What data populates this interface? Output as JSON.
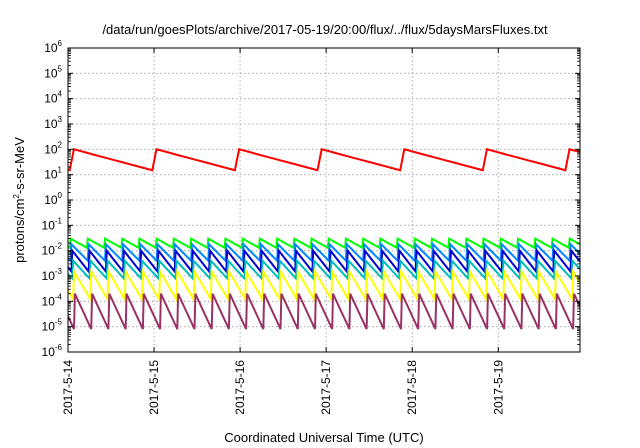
{
  "chart_data": {
    "type": "line",
    "title": "/data/run/goesPlots/archive/2017-05-19/20:00/flux/../flux/5daysMarsFluxes.txt",
    "xlabel": "Coordinated Universal Time (UTC)",
    "ylabel": {
      "pre": "protons/cm",
      "sup": "2",
      "post": "-s-sr-MeV"
    },
    "yscale": "log",
    "ylim": [
      1e-06,
      1000000.0
    ],
    "xlim": [
      0,
      5.95
    ],
    "x_unit": "days since 2017-5-14",
    "xticks": [
      {
        "x": 0,
        "label": "2017-5-14"
      },
      {
        "x": 1,
        "label": "2017-5-15"
      },
      {
        "x": 2,
        "label": "2017-5-16"
      },
      {
        "x": 3,
        "label": "2017-5-17"
      },
      {
        "x": 4,
        "label": "2017-5-18"
      },
      {
        "x": 5,
        "label": "2017-5-19"
      }
    ],
    "yticks": [
      {
        "exp": -6,
        "label": "10",
        "sup": "-6"
      },
      {
        "exp": -5,
        "label": "10",
        "sup": "-5"
      },
      {
        "exp": -4,
        "label": "10",
        "sup": "-4"
      },
      {
        "exp": -3,
        "label": "10",
        "sup": "-3"
      },
      {
        "exp": -2,
        "label": "10",
        "sup": "-2"
      },
      {
        "exp": -1,
        "label": "10",
        "sup": "-1"
      },
      {
        "exp": 0,
        "label": "10",
        "sup": "0"
      },
      {
        "exp": 1,
        "label": "10",
        "sup": "1"
      },
      {
        "exp": 2,
        "label": "10",
        "sup": "2"
      },
      {
        "exp": 3,
        "label": "10",
        "sup": "3"
      },
      {
        "exp": 4,
        "label": "10",
        "sup": "4"
      },
      {
        "exp": 5,
        "label": "10",
        "sup": "5"
      },
      {
        "exp": 6,
        "label": "10",
        "sup": "6"
      }
    ],
    "grid": true,
    "grid_style": "dotted",
    "series": [
      {
        "color": "#ff0000",
        "period": 0.96,
        "phase": 0.02,
        "segments": 8,
        "top": 100,
        "bottom": 15,
        "tail_shift": 0
      },
      {
        "color": "#00ff00",
        "period": 0.2,
        "phase": 0.02,
        "segments": 2,
        "top": 0.03,
        "bottom": 0.013,
        "tail_shift": 0
      },
      {
        "color": "#0088ff",
        "period": 0.2,
        "phase": 0.03,
        "segments": 2,
        "top": 0.018,
        "bottom": 0.004,
        "tail_shift": 0
      },
      {
        "color": "#0000cc",
        "period": 0.2,
        "phase": 0.04,
        "segments": 2,
        "top": 0.01,
        "bottom": 0.0015,
        "tail_shift": 0
      },
      {
        "color": "#00bbbb",
        "period": 0.2,
        "phase": 0.05,
        "segments": 2,
        "top": 0.004,
        "bottom": 0.0008,
        "tail_shift": 0
      },
      {
        "color": "#ffff00",
        "period": 0.2,
        "phase": 0.06,
        "segments": 2,
        "top": 0.0015,
        "bottom": 0.00012,
        "tail_shift": 0
      },
      {
        "color": "#993366",
        "period": 0.2,
        "phase": 0.07,
        "segments": 2,
        "top": 0.0002,
        "bottom": 8e-06,
        "tail_shift": 0
      }
    ]
  }
}
